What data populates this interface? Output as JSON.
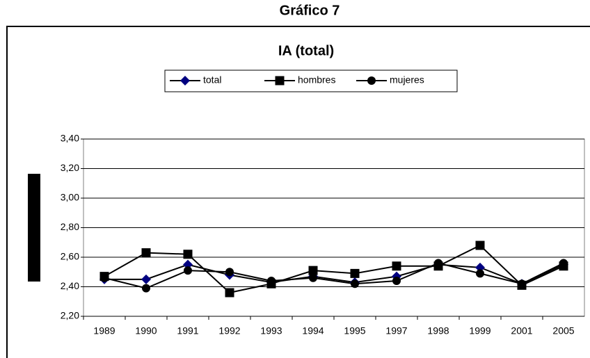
{
  "title": "Gráfico 7",
  "chart_data": {
    "type": "line",
    "title": "IA (total)",
    "categories": [
      "1989",
      "1990",
      "1991",
      "1992",
      "1993",
      "1994",
      "1995",
      "1997",
      "1998",
      "1999",
      "2001",
      "2005"
    ],
    "series": [
      {
        "name": "total",
        "color": "#000080",
        "marker": "diamond",
        "values": [
          2.45,
          2.45,
          2.55,
          2.48,
          2.43,
          2.47,
          2.43,
          2.47,
          2.55,
          2.53,
          2.42,
          2.55
        ]
      },
      {
        "name": "hombres",
        "color": "#000000",
        "marker": "square",
        "values": [
          2.47,
          2.63,
          2.62,
          2.36,
          2.42,
          2.51,
          2.49,
          2.54,
          2.54,
          2.68,
          2.41,
          2.54
        ]
      },
      {
        "name": "mujeres",
        "color": "#000000",
        "marker": "circle",
        "values": [
          2.46,
          2.39,
          2.51,
          2.5,
          2.44,
          2.46,
          2.42,
          2.44,
          2.56,
          2.49,
          2.42,
          2.56
        ]
      }
    ],
    "ylim": [
      2.2,
      3.4
    ],
    "yticks": [
      {
        "value": 2.2,
        "label": "2,20"
      },
      {
        "value": 2.4,
        "label": "2,40"
      },
      {
        "value": 2.6,
        "label": "2,60"
      },
      {
        "value": 2.8,
        "label": "2,80"
      },
      {
        "value": 3.0,
        "label": "3,00"
      },
      {
        "value": 3.2,
        "label": "3,20"
      },
      {
        "value": 3.4,
        "label": "3,40"
      }
    ],
    "grid": true,
    "legend": "top"
  }
}
